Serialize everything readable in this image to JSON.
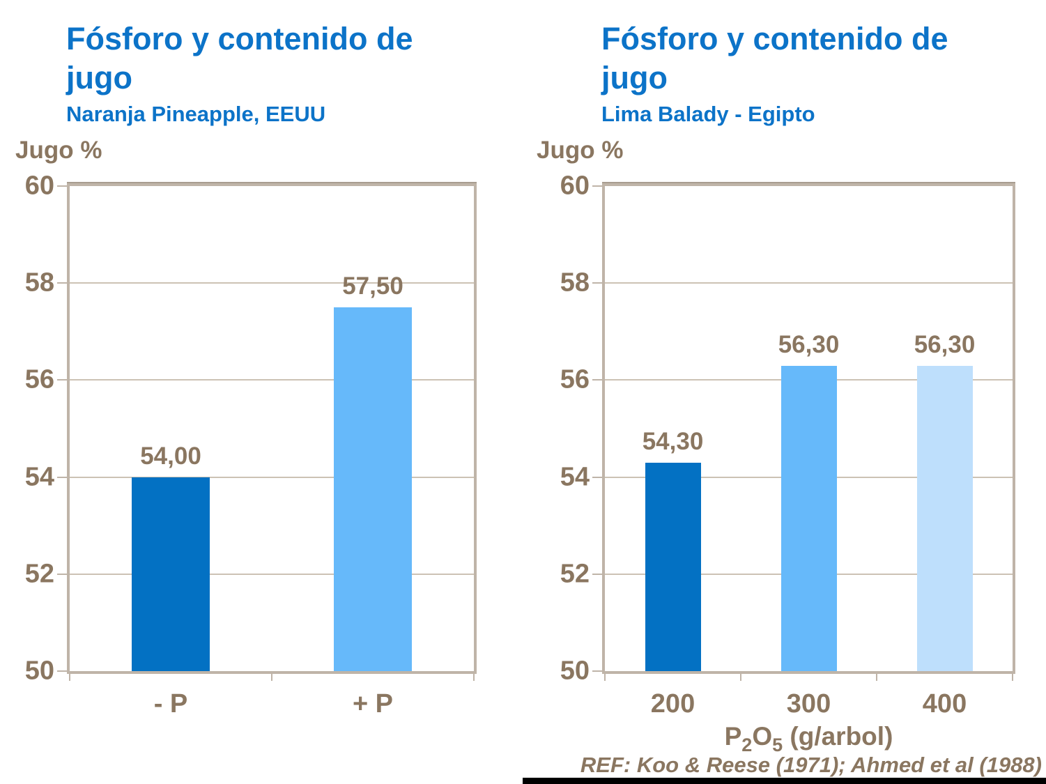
{
  "colors": {
    "title_blue": "#0c73c8",
    "text_brown": "#8a7660",
    "frame_tan": "#bfb4a8",
    "gridline_tan": "#ccc2b4",
    "bar_dark_blue": "#0371c3",
    "bar_light_blue": "#66b9fa",
    "bar_pale_blue": "#bedffc",
    "footer_bar_black": "#000000"
  },
  "chart_data": [
    {
      "type": "bar",
      "title": "Fósforo y contenido de jugo",
      "title_lines": [
        "Fósforo y contenido de",
        "jugo"
      ],
      "subtitle": "Naranja Pineapple, EEUU",
      "ylabel": "Jugo %",
      "xlabel": "",
      "ylim": [
        50,
        60
      ],
      "yticks": [
        60,
        58,
        56,
        54,
        52,
        50
      ],
      "grid": true,
      "legend": "none",
      "categories": [
        "- P",
        "+ P"
      ],
      "values": [
        54.0,
        57.5
      ],
      "value_labels": [
        "54,00",
        "57,50"
      ],
      "bar_colors": [
        "#0371c3",
        "#66b9fa"
      ]
    },
    {
      "type": "bar",
      "title": "Fósforo y contenido de jugo",
      "title_lines": [
        "Fósforo y contenido de",
        "jugo"
      ],
      "subtitle": "Lima Balady - Egipto",
      "ylabel": "Jugo %",
      "xlabel": "P2O5 (g/arbol)",
      "xlabel_parts": {
        "base1": "P",
        "sub1": "2",
        "base2": "O",
        "sub2": "5",
        "rest": " (g/arbol)"
      },
      "ylim": [
        50,
        60
      ],
      "yticks": [
        60,
        58,
        56,
        54,
        52,
        50
      ],
      "grid": true,
      "legend": "none",
      "categories": [
        "200",
        "300",
        "400"
      ],
      "values": [
        54.3,
        56.3,
        56.3
      ],
      "value_labels": [
        "54,30",
        "56,30",
        "56,30"
      ],
      "bar_colors": [
        "#0371c3",
        "#66b9fa",
        "#bedffc"
      ],
      "reference": "REF: Koo & Reese (1971); Ahmed et al (1988)"
    }
  ]
}
